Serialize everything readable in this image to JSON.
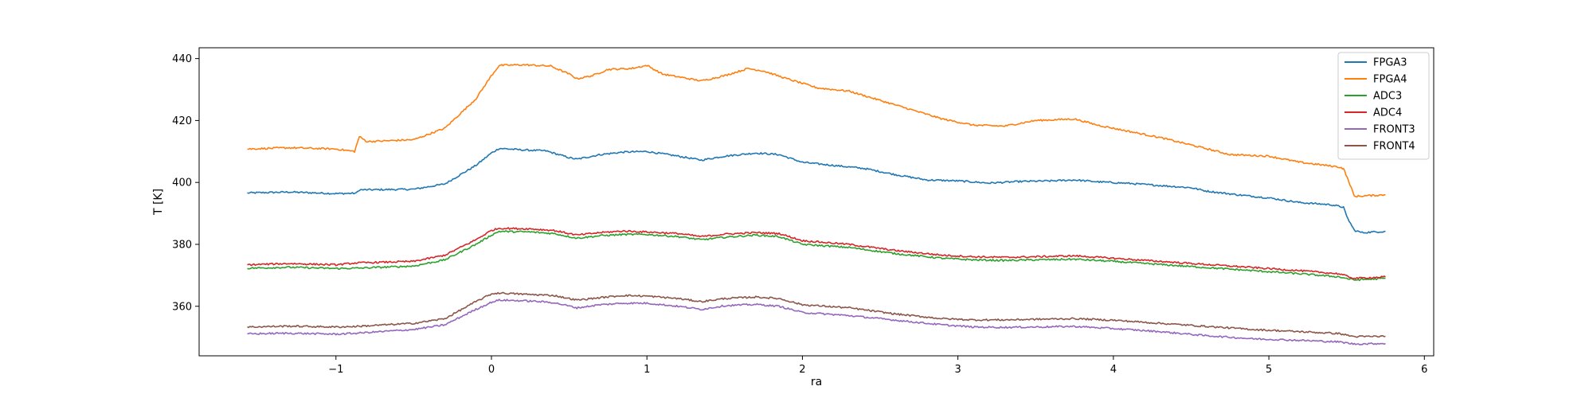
{
  "chart_data": {
    "type": "line",
    "title": "",
    "xlabel": "ra",
    "ylabel": "T [K]",
    "xlim": [
      -1.88,
      6.06
    ],
    "ylim": [
      344.0,
      443.5
    ],
    "x_ticks": [
      -1,
      0,
      1,
      2,
      3,
      4,
      5,
      6
    ],
    "y_ticks": [
      360,
      380,
      400,
      420,
      440
    ],
    "grid": false,
    "legend_position": "top-right",
    "series": [
      {
        "name": "FPGA3",
        "color": "#1f77b4",
        "x": [
          -1.57,
          -1.3,
          -1.0,
          -0.87,
          -0.85,
          -0.5,
          -0.3,
          -0.1,
          0.0,
          0.05,
          0.2,
          0.35,
          0.5,
          0.55,
          0.7,
          0.85,
          1.0,
          1.2,
          1.35,
          1.5,
          1.7,
          1.85,
          2.0,
          2.2,
          2.4,
          2.6,
          2.8,
          3.0,
          3.2,
          3.4,
          3.6,
          3.75,
          3.9,
          4.1,
          4.3,
          4.5,
          4.6,
          4.8,
          5.0,
          5.2,
          5.4,
          5.48,
          5.5,
          5.55,
          5.6,
          5.75
        ],
        "y": [
          396.6,
          396.9,
          396.4,
          396.5,
          397.6,
          397.8,
          399.5,
          405.5,
          409.5,
          411.0,
          410.5,
          410.2,
          408.0,
          407.5,
          409.0,
          409.8,
          410.0,
          408.5,
          407.2,
          408.5,
          409.5,
          409.0,
          406.5,
          405.5,
          404.5,
          402.5,
          400.8,
          400.5,
          399.8,
          400.3,
          400.5,
          400.8,
          400.2,
          399.7,
          399.0,
          398.3,
          397.2,
          396.0,
          395.0,
          393.5,
          392.8,
          392.0,
          389.0,
          384.5,
          383.8,
          384.2
        ]
      },
      {
        "name": "FPGA4",
        "color": "#ff7f0e",
        "x": [
          -1.57,
          -1.3,
          -1.0,
          -0.88,
          -0.85,
          -0.8,
          -0.5,
          -0.3,
          -0.1,
          0.0,
          0.05,
          0.2,
          0.38,
          0.5,
          0.55,
          0.65,
          0.75,
          0.9,
          1.0,
          1.1,
          1.35,
          1.5,
          1.65,
          1.75,
          1.9,
          2.1,
          2.3,
          2.5,
          2.7,
          2.9,
          3.1,
          3.3,
          3.5,
          3.75,
          3.9,
          4.1,
          4.3,
          4.55,
          4.75,
          5.0,
          5.2,
          5.45,
          5.48,
          5.52,
          5.55,
          5.75
        ],
        "y": [
          410.8,
          411.2,
          410.8,
          410.0,
          414.8,
          413.2,
          413.8,
          417.5,
          427.0,
          434.5,
          437.8,
          438.0,
          437.6,
          435.0,
          433.5,
          434.5,
          436.5,
          436.8,
          437.8,
          435.0,
          432.8,
          434.5,
          436.8,
          436.0,
          433.5,
          430.5,
          429.5,
          426.5,
          423.5,
          420.5,
          418.5,
          418.2,
          420.0,
          420.5,
          418.5,
          416.5,
          414.5,
          411.5,
          409.0,
          408.5,
          406.5,
          405.0,
          404.5,
          399.5,
          395.5,
          396.0
        ]
      },
      {
        "name": "ADC3",
        "color": "#2ca02c",
        "x": [
          -1.57,
          -1.3,
          -1.0,
          -0.87,
          -0.5,
          -0.3,
          -0.1,
          0.0,
          0.05,
          0.25,
          0.4,
          0.55,
          0.7,
          0.85,
          1.0,
          1.2,
          1.35,
          1.5,
          1.7,
          1.85,
          2.0,
          2.3,
          2.6,
          2.9,
          3.1,
          3.3,
          3.5,
          3.75,
          4.0,
          4.3,
          4.6,
          4.9,
          5.2,
          5.45,
          5.55,
          5.75
        ],
        "y": [
          372.3,
          372.6,
          372.2,
          372.3,
          373.0,
          375.0,
          380.0,
          383.0,
          384.2,
          384.0,
          383.5,
          382.0,
          382.8,
          383.2,
          383.2,
          382.5,
          381.5,
          382.3,
          383.0,
          382.5,
          380.0,
          379.0,
          377.0,
          375.5,
          375.0,
          374.8,
          375.0,
          375.2,
          374.5,
          373.5,
          372.5,
          371.5,
          370.5,
          369.5,
          368.5,
          369.0
        ]
      },
      {
        "name": "ADC4",
        "color": "#d62728",
        "x": [
          -1.57,
          -1.3,
          -1.0,
          -0.87,
          -0.5,
          -0.3,
          -0.1,
          0.0,
          0.05,
          0.25,
          0.4,
          0.55,
          0.7,
          0.85,
          1.0,
          1.2,
          1.35,
          1.5,
          1.7,
          1.85,
          2.0,
          2.3,
          2.6,
          2.9,
          3.1,
          3.3,
          3.5,
          3.75,
          4.0,
          4.3,
          4.6,
          4.9,
          5.2,
          5.45,
          5.55,
          5.75
        ],
        "y": [
          373.4,
          373.8,
          373.4,
          374.0,
          374.5,
          376.5,
          381.5,
          384.5,
          385.2,
          385.0,
          384.5,
          383.0,
          383.8,
          384.3,
          384.0,
          383.5,
          382.5,
          383.3,
          383.8,
          383.5,
          381.2,
          380.0,
          378.0,
          376.5,
          376.0,
          375.8,
          376.0,
          376.3,
          375.5,
          374.5,
          373.5,
          372.5,
          371.5,
          370.5,
          369.0,
          369.5
        ]
      },
      {
        "name": "FRONT3",
        "color": "#9467bd",
        "x": [
          -1.57,
          -1.3,
          -1.0,
          -0.87,
          -0.5,
          -0.3,
          -0.1,
          0.0,
          0.05,
          0.25,
          0.4,
          0.55,
          0.7,
          0.85,
          1.0,
          1.2,
          1.35,
          1.5,
          1.7,
          1.85,
          2.0,
          2.3,
          2.6,
          2.9,
          3.1,
          3.3,
          3.5,
          3.75,
          4.0,
          4.3,
          4.6,
          4.9,
          5.2,
          5.45,
          5.55,
          5.75
        ],
        "y": [
          351.1,
          351.3,
          351.0,
          351.3,
          352.5,
          354.0,
          359.0,
          361.3,
          362.0,
          361.7,
          361.2,
          359.5,
          360.5,
          361.0,
          361.0,
          360.0,
          359.0,
          360.2,
          360.6,
          360.0,
          358.0,
          357.0,
          355.5,
          354.0,
          353.3,
          353.2,
          353.3,
          353.5,
          352.8,
          351.8,
          350.5,
          349.5,
          349.0,
          348.5,
          347.8,
          348.0
        ]
      },
      {
        "name": "FRONT4",
        "color": "#8c564b",
        "x": [
          -1.57,
          -1.3,
          -1.0,
          -0.87,
          -0.5,
          -0.3,
          -0.1,
          0.0,
          0.05,
          0.25,
          0.4,
          0.55,
          0.7,
          0.85,
          1.0,
          1.2,
          1.35,
          1.5,
          1.7,
          1.85,
          2.0,
          2.3,
          2.6,
          2.9,
          3.1,
          3.3,
          3.5,
          3.75,
          4.0,
          4.3,
          4.6,
          4.9,
          5.2,
          5.45,
          5.55,
          5.75
        ],
        "y": [
          353.3,
          353.6,
          353.3,
          353.5,
          354.5,
          356.0,
          361.5,
          364.0,
          364.3,
          363.8,
          363.5,
          362.0,
          362.8,
          363.5,
          363.3,
          362.5,
          361.5,
          362.5,
          363.0,
          362.5,
          360.5,
          359.5,
          357.5,
          356.0,
          355.6,
          355.6,
          355.8,
          356.0,
          355.5,
          354.5,
          353.5,
          352.5,
          351.8,
          351.2,
          350.2,
          350.3
        ]
      }
    ]
  }
}
